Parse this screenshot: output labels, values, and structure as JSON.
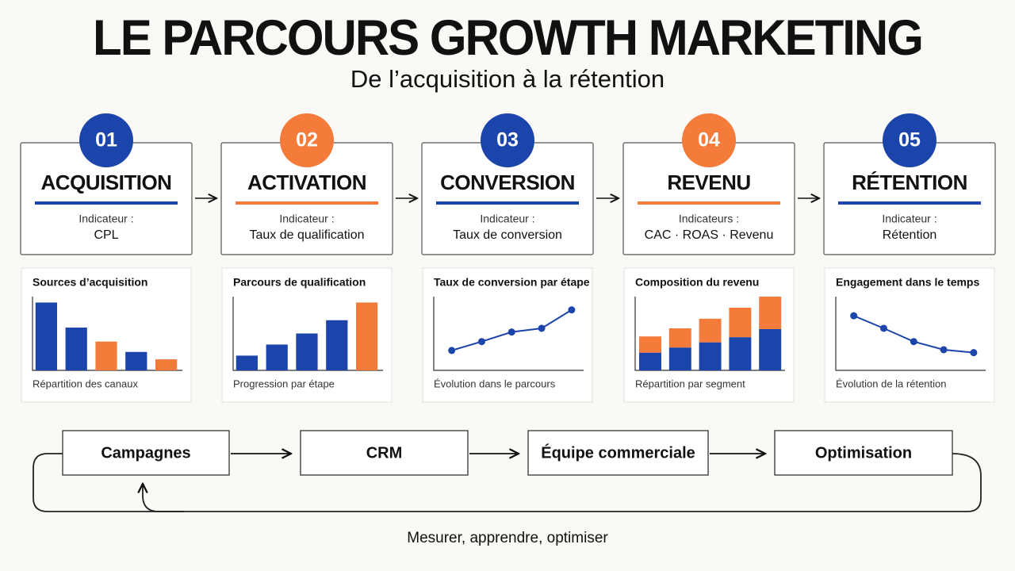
{
  "title": "LE PARCOURS GROWTH MARKETING",
  "subtitle": "De l’acquisition à la rétention",
  "stages": [
    {
      "number": "01",
      "name": "ACQUISITION",
      "color": "#1c45ab",
      "indicator_label": "Indicateur :",
      "indicator_value": "CPL",
      "chart": {
        "type": "bar",
        "title": "Sources d’acquisition",
        "caption": "Répartition des canaux",
        "ylim": [
          0,
          100
        ],
        "values": [
          92,
          58,
          39,
          25,
          15
        ],
        "colors": [
          "#1c45ab",
          "#1c45ab",
          "#f47b3a",
          "#1c45ab",
          "#f47b3a"
        ]
      }
    },
    {
      "number": "02",
      "name": "ACTIVATION",
      "color": "#f47b3a",
      "indicator_label": "Indicateur :",
      "indicator_value": "Taux de qualification",
      "chart": {
        "type": "bar",
        "title": "Parcours de qualification",
        "caption": "Progression par étape",
        "ylim": [
          0,
          100
        ],
        "values": [
          20,
          35,
          50,
          68,
          92
        ],
        "colors": [
          "#1c45ab",
          "#1c45ab",
          "#1c45ab",
          "#1c45ab",
          "#f47b3a"
        ]
      }
    },
    {
      "number": "03",
      "name": "CONVERSION",
      "color": "#1c45ab",
      "indicator_label": "Indicateur :",
      "indicator_value": "Taux de conversion",
      "chart": {
        "type": "line",
        "title": "Taux de conversion par étape",
        "caption": "Évolution dans le parcours",
        "ylim": [
          0,
          100
        ],
        "values": [
          27,
          39,
          52,
          57,
          82
        ],
        "color": "#1c45ab"
      }
    },
    {
      "number": "04",
      "name": "REVENU",
      "color": "#f47b3a",
      "indicator_label": "Indicateurs :",
      "indicator_value": "CAC · ROAS · Revenu",
      "chart": {
        "type": "stacked",
        "title": "Composition du revenu",
        "caption": "Répartition par segment",
        "ylim": [
          0,
          100
        ],
        "series": [
          {
            "color": "#1c45ab",
            "values": [
              24,
              31,
              38,
              45,
              56
            ]
          },
          {
            "color": "#f47b3a",
            "values": [
              22,
              26,
              32,
              40,
              44
            ]
          }
        ]
      }
    },
    {
      "number": "05",
      "name": "RÉTENTION",
      "color": "#1c45ab",
      "indicator_label": "Indicateur :",
      "indicator_value": "Rétention",
      "chart": {
        "type": "line",
        "title": "Engagement dans le temps",
        "caption": "Évolution de la rétention",
        "ylim": [
          0,
          100
        ],
        "values": [
          74,
          57,
          39,
          28,
          24
        ],
        "color": "#1c45ab"
      }
    }
  ],
  "flow": [
    "Campagnes",
    "CRM",
    "Équipe commerciale",
    "Optimisation"
  ],
  "loop_label": "Mesurer, apprendre, optimiser"
}
